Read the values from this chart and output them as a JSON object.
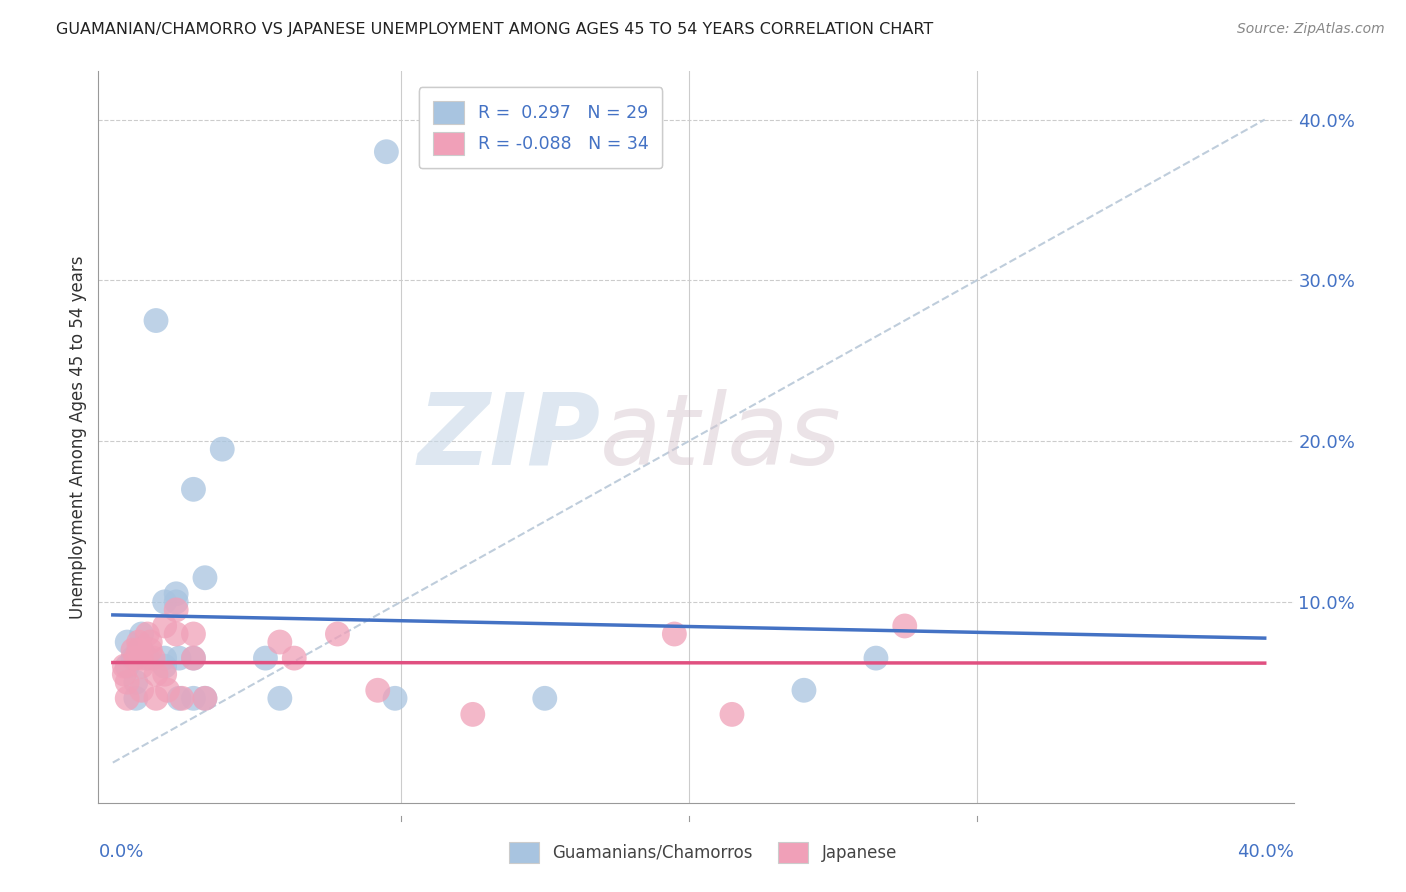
{
  "title": "GUAMANIAN/CHAMORRO VS JAPANESE UNEMPLOYMENT AMONG AGES 45 TO 54 YEARS CORRELATION CHART",
  "source": "Source: ZipAtlas.com",
  "ylabel": "Unemployment Among Ages 45 to 54 years",
  "xlim": [
    -0.005,
    0.41
  ],
  "ylim": [
    -0.025,
    0.43
  ],
  "ytick_positions": [
    0.0,
    0.1,
    0.2,
    0.3,
    0.4
  ],
  "ytick_labels": [
    "",
    "10.0%",
    "20.0%",
    "30.0%",
    "40.0%"
  ],
  "xtick_minor_positions": [
    0.1,
    0.2,
    0.3
  ],
  "watermark_zip": "ZIP",
  "watermark_atlas": "atlas",
  "legend_labels": [
    "Guamanians/Chamorros",
    "Japanese"
  ],
  "guamanian_R": 0.297,
  "guamanian_N": 29,
  "japanese_R": -0.088,
  "japanese_N": 34,
  "guamanian_color": "#a8c4e0",
  "japanese_color": "#f0a0b8",
  "guamanian_line_color": "#4472c4",
  "japanese_line_color": "#e05080",
  "background_color": "#ffffff",
  "guamanian_scatter": [
    [
      0.005,
      0.075
    ],
    [
      0.005,
      0.06
    ],
    [
      0.007,
      0.065
    ],
    [
      0.008,
      0.05
    ],
    [
      0.008,
      0.04
    ],
    [
      0.01,
      0.08
    ],
    [
      0.01,
      0.07
    ],
    [
      0.012,
      0.065
    ],
    [
      0.015,
      0.275
    ],
    [
      0.018,
      0.1
    ],
    [
      0.018,
      0.065
    ],
    [
      0.018,
      0.06
    ],
    [
      0.022,
      0.1
    ],
    [
      0.022,
      0.105
    ],
    [
      0.023,
      0.065
    ],
    [
      0.023,
      0.04
    ],
    [
      0.028,
      0.17
    ],
    [
      0.028,
      0.065
    ],
    [
      0.028,
      0.04
    ],
    [
      0.032,
      0.115
    ],
    [
      0.032,
      0.04
    ],
    [
      0.038,
      0.195
    ],
    [
      0.053,
      0.065
    ],
    [
      0.058,
      0.04
    ],
    [
      0.095,
      0.38
    ],
    [
      0.098,
      0.04
    ],
    [
      0.15,
      0.04
    ],
    [
      0.24,
      0.045
    ],
    [
      0.265,
      0.065
    ]
  ],
  "japanese_scatter": [
    [
      0.004,
      0.06
    ],
    [
      0.004,
      0.055
    ],
    [
      0.005,
      0.05
    ],
    [
      0.005,
      0.04
    ],
    [
      0.007,
      0.07
    ],
    [
      0.008,
      0.065
    ],
    [
      0.009,
      0.075
    ],
    [
      0.009,
      0.07
    ],
    [
      0.01,
      0.065
    ],
    [
      0.01,
      0.06
    ],
    [
      0.01,
      0.045
    ],
    [
      0.012,
      0.08
    ],
    [
      0.013,
      0.075
    ],
    [
      0.013,
      0.07
    ],
    [
      0.014,
      0.065
    ],
    [
      0.015,
      0.055
    ],
    [
      0.015,
      0.04
    ],
    [
      0.018,
      0.085
    ],
    [
      0.018,
      0.055
    ],
    [
      0.019,
      0.045
    ],
    [
      0.022,
      0.095
    ],
    [
      0.022,
      0.08
    ],
    [
      0.024,
      0.04
    ],
    [
      0.028,
      0.08
    ],
    [
      0.028,
      0.065
    ],
    [
      0.032,
      0.04
    ],
    [
      0.058,
      0.075
    ],
    [
      0.063,
      0.065
    ],
    [
      0.078,
      0.08
    ],
    [
      0.092,
      0.045
    ],
    [
      0.125,
      0.03
    ],
    [
      0.195,
      0.08
    ],
    [
      0.215,
      0.03
    ],
    [
      0.275,
      0.085
    ]
  ]
}
